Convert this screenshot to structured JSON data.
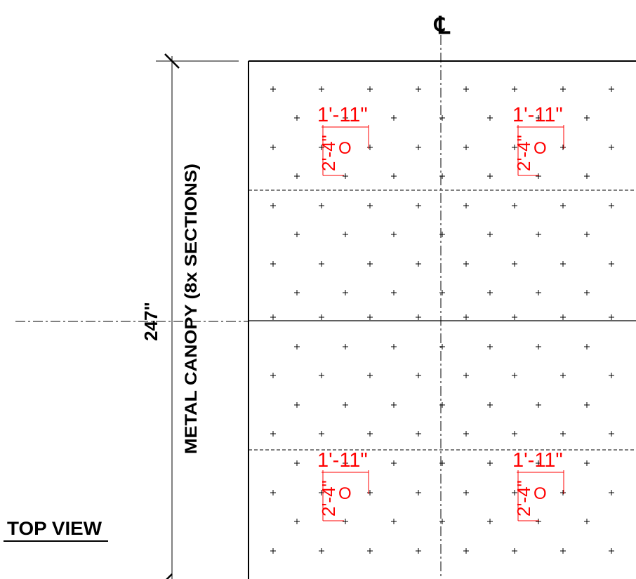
{
  "view_title": "TOP VIEW",
  "centerline_symbol": "℄",
  "overall_dimension": "247\"",
  "canopy_label": "METAL CANOPY (8x SECTIONS)",
  "openings": [
    {
      "width_dim": "1'-11\"",
      "depth_dim": "2'-4\"",
      "symbol": "O"
    },
    {
      "width_dim": "1'-11\"",
      "depth_dim": "2'-4\"",
      "symbol": "O"
    },
    {
      "width_dim": "1'-11\"",
      "depth_dim": "2'-4\"",
      "symbol": "O"
    },
    {
      "width_dim": "1'-11\"",
      "depth_dim": "2'-4\"",
      "symbol": "O"
    }
  ],
  "colors": {
    "line": "#000000",
    "dimension": "#ff0000",
    "background": "#ffffff"
  }
}
